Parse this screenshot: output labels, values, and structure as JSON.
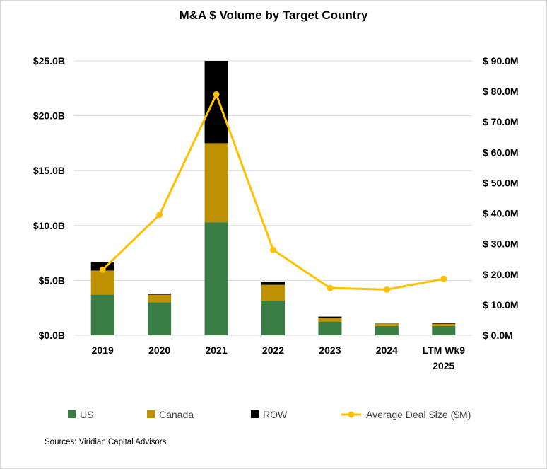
{
  "chart_data": {
    "type": "bar",
    "title": "M&A $ Volume by Target Country",
    "categories": [
      [
        "2019"
      ],
      [
        "2020"
      ],
      [
        "2021"
      ],
      [
        "2022"
      ],
      [
        "2023"
      ],
      [
        "2024"
      ],
      [
        "LTM Wk9",
        "2025"
      ]
    ],
    "series": [
      {
        "name": "US",
        "kind": "bar",
        "axis": "left",
        "values": [
          3.7,
          3.0,
          10.3,
          3.1,
          1.25,
          0.85,
          0.85
        ]
      },
      {
        "name": "Canada",
        "kind": "bar",
        "axis": "left",
        "values": [
          2.2,
          0.7,
          7.2,
          1.5,
          0.35,
          0.25,
          0.2
        ]
      },
      {
        "name": "ROW",
        "kind": "bar",
        "axis": "left",
        "values": [
          0.8,
          0.1,
          7.5,
          0.3,
          0.1,
          0.05,
          0.05
        ]
      },
      {
        "name": "Average Deal Size ($M)",
        "kind": "line",
        "axis": "right",
        "values": [
          21.5,
          39.5,
          79.0,
          28.0,
          15.5,
          15.0,
          18.5
        ]
      }
    ],
    "y_left": {
      "min": 0,
      "max": 25,
      "ticks": [
        "$0.0B",
        "$5.0B",
        "$10.0B",
        "$15.0B",
        "$20.0B",
        "$25.0B"
      ]
    },
    "y_right": {
      "min": 0,
      "max": 90,
      "ticks": [
        "$ 0.0M",
        "$ 10.0M",
        "$ 20.0M",
        "$ 30.0M",
        "$ 40.0M",
        "$ 50.0M",
        "$ 60.0M",
        "$ 70.0M",
        "$ 80.0M",
        "$ 90.0M"
      ]
    },
    "grid": true,
    "legend_position": "bottom",
    "colors": {
      "US": "#3a7d44",
      "Canada": "#bf9000",
      "ROW": "#000000",
      "Average Deal Size ($M)": "#ffc000",
      "grid": "#d9d9d9"
    }
  },
  "source_note": "Sources: Viridian Capital Advisors"
}
